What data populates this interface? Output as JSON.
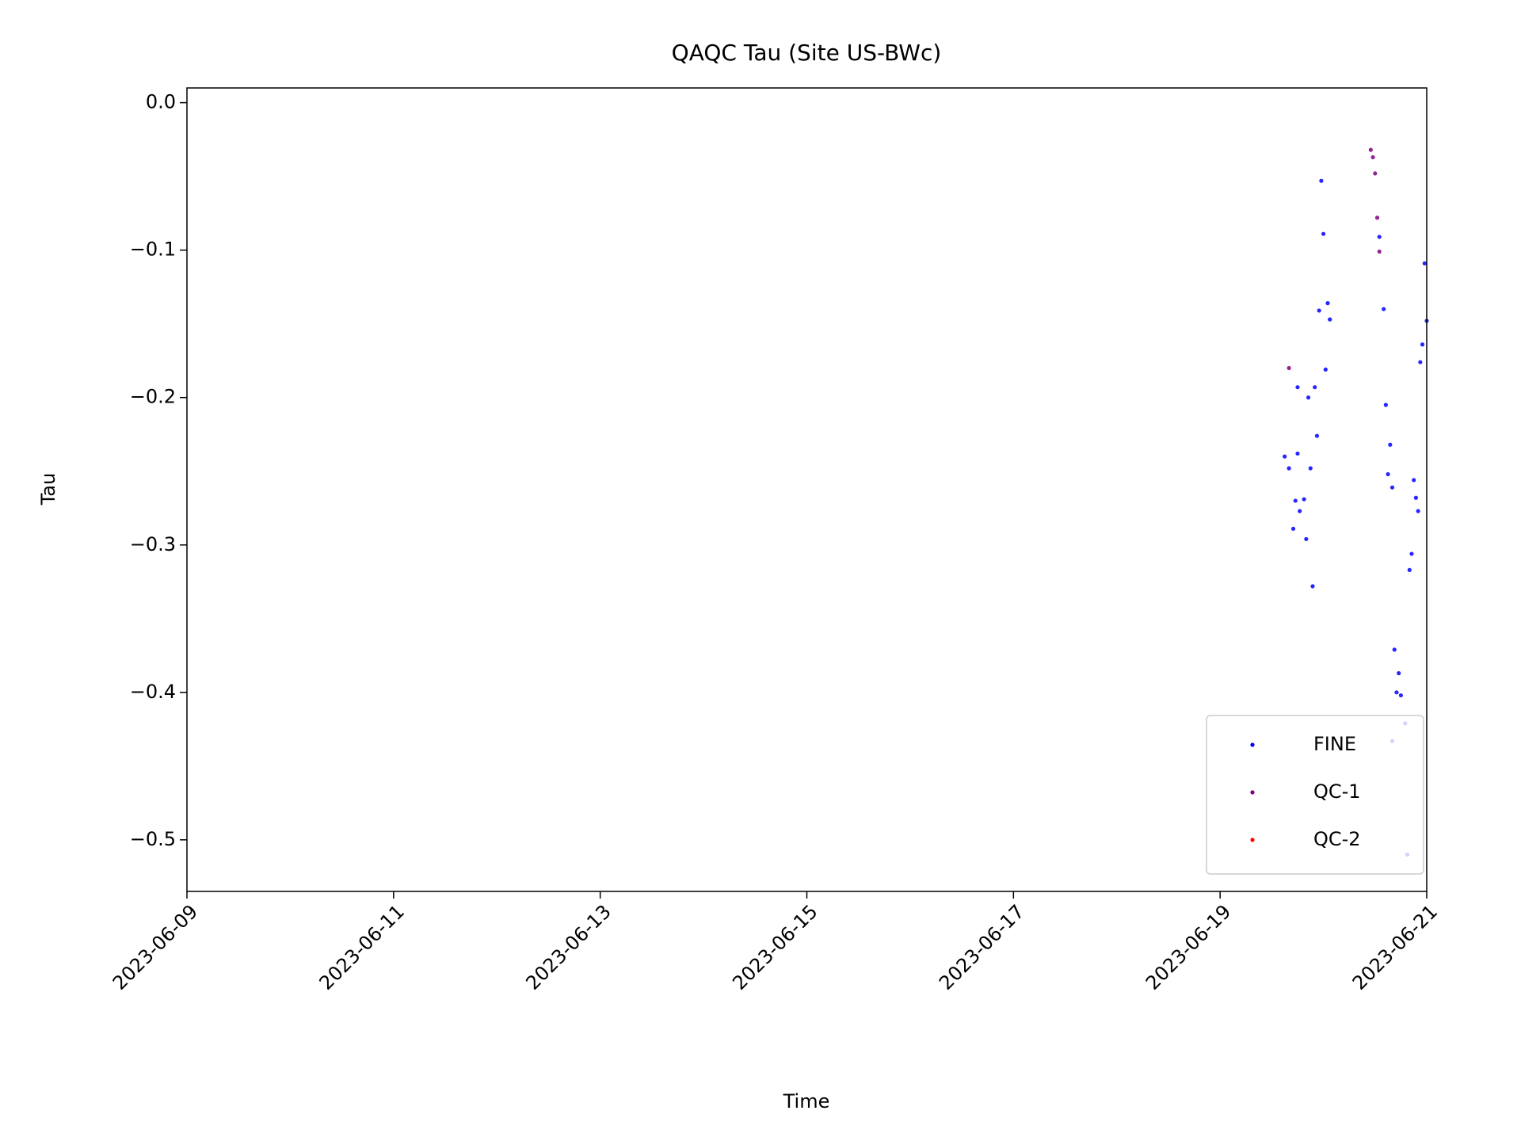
{
  "chart_data": {
    "type": "scatter",
    "title": "QAQC Tau (Site US-BWc)",
    "x_label": "Time",
    "y_label": "Tau",
    "xlim": [
      "2023-06-09",
      "2023-06-21"
    ],
    "xticks": [
      "2023-06-09",
      "2023-06-11",
      "2023-06-13",
      "2023-06-15",
      "2023-06-17",
      "2023-06-19",
      "2023-06-21"
    ],
    "ylim": [
      -0.535,
      0.01
    ],
    "yticks": [
      {
        "value": 0,
        "label": "0.0"
      },
      {
        "value": -0.1,
        "label": "−0.1"
      },
      {
        "value": -0.2,
        "label": "−0.2"
      },
      {
        "value": -0.3,
        "label": "−0.3"
      },
      {
        "value": -0.4,
        "label": "−0.4"
      },
      {
        "value": -0.5,
        "label": "−0.5"
      }
    ],
    "legend": "lower right",
    "series": [
      {
        "name": "FINE",
        "color": "#0000ff",
        "x": [
          "2023-06-19 15:00",
          "2023-06-19 16:00",
          "2023-06-19 17:00",
          "2023-06-19 17:30",
          "2023-06-19 18:00",
          "2023-06-19 18:00",
          "2023-06-19 18:30",
          "2023-06-19 19:30",
          "2023-06-19 20:00",
          "2023-06-19 20:30",
          "2023-06-19 21:00",
          "2023-06-19 21:30",
          "2023-06-19 22:00",
          "2023-06-19 22:30",
          "2023-06-19 23:00",
          "2023-06-19 23:30",
          "2023-06-20 00:00",
          "2023-06-20 00:30",
          "2023-06-20 01:00",
          "2023-06-20 01:30",
          "2023-06-20 13:00",
          "2023-06-20 14:00",
          "2023-06-20 14:30",
          "2023-06-20 15:00",
          "2023-06-20 15:30",
          "2023-06-20 16:00",
          "2023-06-20 16:30",
          "2023-06-20 17:30",
          "2023-06-20 17:00",
          "2023-06-20 18:00",
          "2023-06-20 16:00",
          "2023-06-20 19:00",
          "2023-06-20 19:30",
          "2023-06-20 20:00",
          "2023-06-20 20:30",
          "2023-06-20 21:00",
          "2023-06-20 21:30",
          "2023-06-20 22:00",
          "2023-06-20 22:30",
          "2023-06-20 23:00",
          "2023-06-20 23:30",
          "2023-06-21 00:00"
        ],
        "values": [
          -0.24,
          -0.248,
          -0.289,
          -0.27,
          -0.238,
          -0.193,
          -0.277,
          -0.269,
          -0.296,
          -0.2,
          -0.248,
          -0.328,
          -0.193,
          -0.226,
          -0.141,
          -0.053,
          -0.089,
          -0.181,
          -0.136,
          -0.147,
          -0.091,
          -0.14,
          -0.205,
          -0.252,
          -0.232,
          -0.261,
          -0.371,
          -0.387,
          -0.4,
          -0.402,
          -0.433,
          -0.421,
          -0.51,
          -0.317,
          -0.306,
          -0.256,
          -0.268,
          -0.277,
          -0.176,
          -0.164,
          -0.109,
          -0.148
        ]
      },
      {
        "name": "QC-1",
        "color": "#800080",
        "x": [
          "2023-06-19 16:00",
          "2023-06-20 11:00",
          "2023-06-20 11:30",
          "2023-06-20 12:00",
          "2023-06-20 12:30",
          "2023-06-20 13:00"
        ],
        "values": [
          -0.18,
          -0.032,
          -0.037,
          -0.048,
          -0.078,
          -0.101
        ]
      },
      {
        "name": "QC-2",
        "color": "#ff0000",
        "x": [],
        "values": []
      }
    ]
  }
}
